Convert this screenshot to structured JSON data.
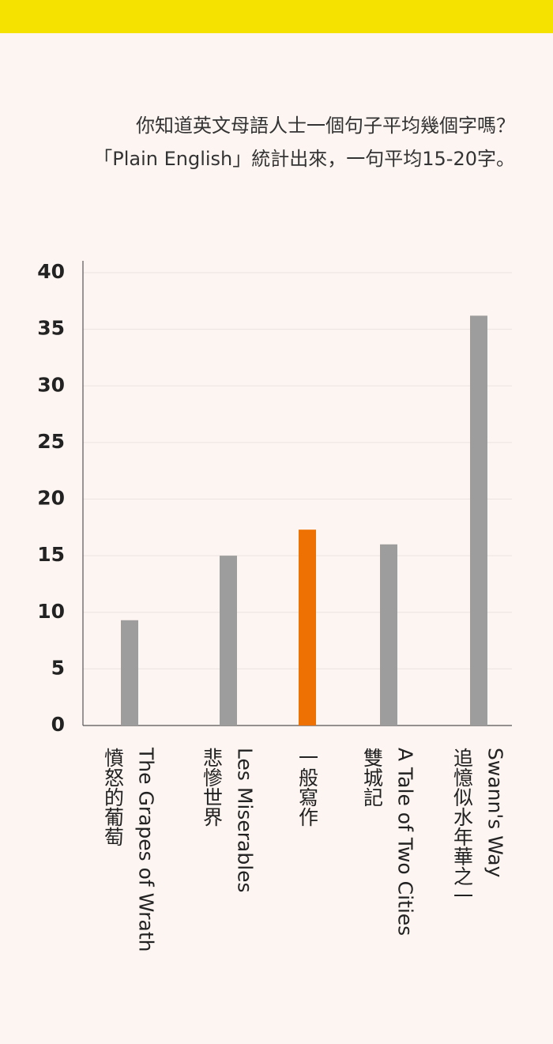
{
  "chart_data": {
    "type": "bar",
    "subtitle": [
      "你知道英文母語人士一個句子平均幾個字嗎？",
      "「Plain English」統計出來，一句平均15-20字。"
    ],
    "categories": [
      [
        "The Grapes of Wrath",
        "憤怒的葡萄"
      ],
      [
        "Les Miserables",
        "悲慘世界"
      ],
      [
        "一般寫作"
      ],
      [
        "A Tale of Two Cities",
        "雙城記"
      ],
      [
        "Swann's Way",
        "追憶似水年華之一"
      ]
    ],
    "values": [
      9.3,
      15,
      17.3,
      16,
      36.2
    ],
    "colors": [
      "#9d9d9d",
      "#9d9d9d",
      "#ee7203",
      "#9d9d9d",
      "#9d9d9d"
    ],
    "ylim": [
      0,
      40
    ],
    "yticks": [
      0,
      5,
      10,
      15,
      20,
      25,
      30,
      35,
      40
    ],
    "grid": true
  }
}
